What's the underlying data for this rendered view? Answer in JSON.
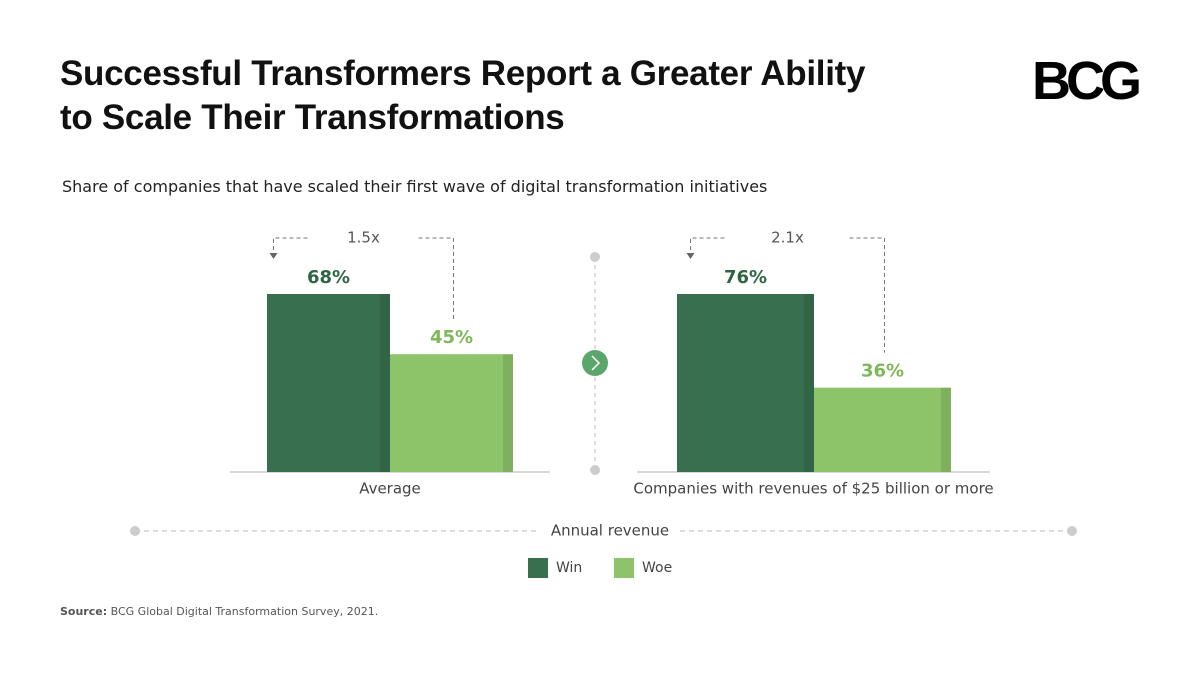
{
  "logo": "BCG",
  "chart_data": {
    "type": "bar",
    "title": [
      "Successful Transformers Report a Greater Ability",
      "to Scale Their Transformations"
    ],
    "subtitle": "Share of companies that have scaled their first wave of digital transformation initiatives",
    "categories": [
      "Average",
      "Companies with revenues of $25 billion or more"
    ],
    "series": [
      {
        "name": "Win",
        "color": "#38704f",
        "label_color": "#2f6545",
        "values": [
          68,
          76
        ],
        "value_labels": [
          "68%",
          "76%"
        ]
      },
      {
        "name": "Woe",
        "color": "#8ec469",
        "label_color": "#7fb85a",
        "values": [
          45,
          36
        ],
        "value_labels": [
          "45%",
          "36%"
        ]
      }
    ],
    "annotations": [
      "1.5x",
      "2.1x"
    ],
    "x_label": "Annual revenue",
    "source_label": "Source:",
    "source": "BCG Global Digital Transformation Survey, 2021."
  }
}
